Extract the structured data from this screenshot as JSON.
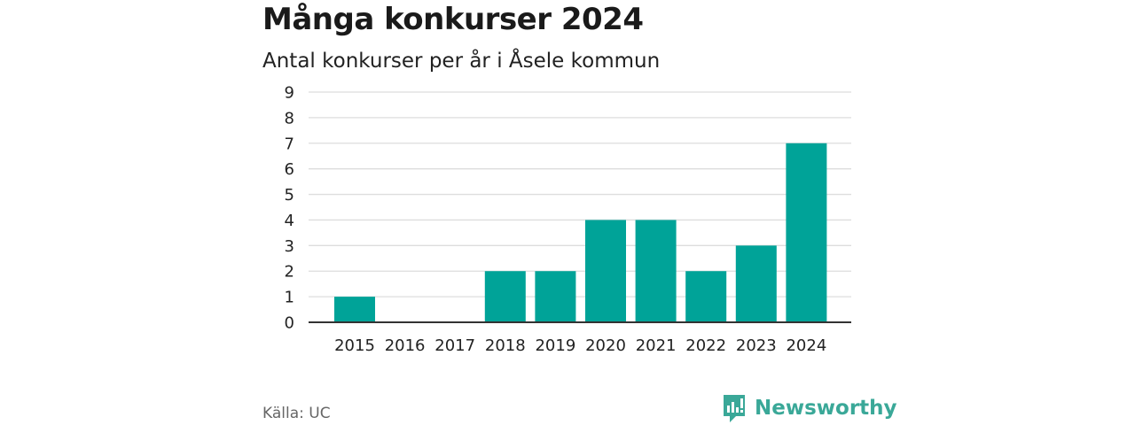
{
  "header": {
    "title": "Många konkurser 2024",
    "subtitle": "Antal konkurser per år i Åsele kommun"
  },
  "footer": {
    "source": "Källa: UC",
    "brand": "Newsworthy"
  },
  "colors": {
    "bar": "#00a398",
    "grid": "#dddddd",
    "axis": "#333333",
    "brand": "#3aa898"
  },
  "chart_data": {
    "type": "bar",
    "categories": [
      "2015",
      "2016",
      "2017",
      "2018",
      "2019",
      "2020",
      "2021",
      "2022",
      "2023",
      "2024"
    ],
    "values": [
      1,
      0,
      0,
      2,
      2,
      4,
      4,
      2,
      3,
      7
    ],
    "title": "Många konkurser 2024",
    "subtitle": "Antal konkurser per år i Åsele kommun",
    "xlabel": "",
    "ylabel": "",
    "ylim": [
      0,
      9
    ],
    "yticks": [
      0,
      1,
      2,
      3,
      4,
      5,
      6,
      7,
      8,
      9
    ],
    "grid": true,
    "legend": false
  }
}
